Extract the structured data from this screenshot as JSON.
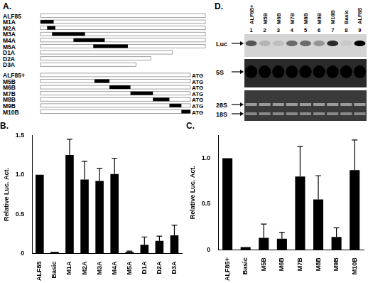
{
  "construct_map": {
    "label": "A.",
    "groups": [
      {
        "end_label": null,
        "constructs": [
          {
            "name": "ALF85",
            "length": 1,
            "mutation": null
          },
          {
            "name": "M1A",
            "length": 1,
            "mutation": [
              0,
              0.08
            ]
          },
          {
            "name": "M2A",
            "length": 1,
            "mutation": [
              0.04,
              0.09
            ]
          },
          {
            "name": "M3A",
            "length": 1,
            "mutation": [
              0.07,
              0.27
            ]
          },
          {
            "name": "M4A",
            "length": 1,
            "mutation": [
              0.2,
              0.39
            ]
          },
          {
            "name": "M5A",
            "length": 1,
            "mutation": [
              0.32,
              0.53
            ]
          },
          {
            "name": "D1A",
            "length": 0.8,
            "mutation": null
          },
          {
            "name": "D2A",
            "length": 0.67,
            "mutation": null
          },
          {
            "name": "D3A",
            "length": 0.58,
            "mutation": null
          }
        ]
      },
      {
        "end_label": "ATG",
        "constructs": [
          {
            "name": "ALF85+",
            "length": 1,
            "mutation": null
          },
          {
            "name": "M5B",
            "length": 1,
            "mutation": [
              0.36,
              0.46
            ]
          },
          {
            "name": "M6B",
            "length": 1,
            "mutation": [
              0.46,
              0.6
            ]
          },
          {
            "name": "M7B",
            "length": 1,
            "mutation": [
              0.6,
              0.75
            ]
          },
          {
            "name": "M8B",
            "length": 1,
            "mutation": [
              0.75,
              0.86
            ]
          },
          {
            "name": "M9B",
            "length": 1,
            "mutation": [
              0.86,
              0.94
            ]
          },
          {
            "name": "M10B",
            "length": 1,
            "mutation": [
              0.94,
              1
            ]
          }
        ]
      }
    ]
  },
  "chart_data": [
    {
      "type": "bar",
      "title": "B.",
      "y_label": "Relative Luc. Act.",
      "categories": [
        "ALF85",
        "Basic",
        "M1A",
        "M2A",
        "M3A",
        "M4A",
        "M5A",
        "D1A",
        "D2A",
        "D3A"
      ],
      "values": [
        1.0,
        0.02,
        1.25,
        0.94,
        0.92,
        1.01,
        0.02,
        0.11,
        0.16,
        0.23
      ],
      "errors": [
        0,
        0,
        0.2,
        0.23,
        0.16,
        0.2,
        0.01,
        0.1,
        0.06,
        0.13
      ],
      "color": "#000000",
      "ylim": [
        0,
        1.5
      ],
      "yticks": [
        0,
        0.5,
        {
          "value": 1,
          "label": "1.0"
        },
        {
          "value": 1.5,
          "label": "1.5"
        }
      ],
      "grid": false
    },
    {
      "type": "bar",
      "title": "C.",
      "y_label": "Relative Luc. Act.",
      "categories": [
        "ALF85+",
        "Basic",
        "M5B",
        "M6B",
        "M7B",
        "M8B",
        "M9B",
        "M10B"
      ],
      "values": [
        1.0,
        0.03,
        0.13,
        0.12,
        0.8,
        0.55,
        0.14,
        0.87
      ],
      "errors": [
        0,
        0,
        0.15,
        0.07,
        0.33,
        0.26,
        0.1,
        0.33
      ],
      "color": "#000000",
      "ylim": [
        0,
        1.25
      ],
      "yticks": [
        0,
        0.5,
        {
          "value": 1,
          "label": "1.0"
        }
      ],
      "grid": false
    }
  ],
  "blot": {
    "label": "D.",
    "lanes": [
      {
        "name": "ALF85+",
        "number": 1,
        "luc_signal": 0.6
      },
      {
        "name": "M5B",
        "number": 2,
        "luc_signal": 0.15
      },
      {
        "name": "M6B",
        "number": 3,
        "luc_signal": 0.1
      },
      {
        "name": "M7B",
        "number": 4,
        "luc_signal": 0.5
      },
      {
        "name": "M8B",
        "number": 5,
        "luc_signal": 0.5
      },
      {
        "name": "M9B",
        "number": 6,
        "luc_signal": 0.3
      },
      {
        "name": "M10B",
        "number": 7,
        "luc_signal": 0.8
      },
      {
        "name": "Basic",
        "number": 8,
        "luc_signal": 0.05
      },
      {
        "name": "ALF85",
        "number": 9,
        "luc_signal": 1.0
      }
    ],
    "bands": {
      "luc": "Luc",
      "s5": "5S",
      "s28": "28S",
      "s18": "18S"
    }
  }
}
